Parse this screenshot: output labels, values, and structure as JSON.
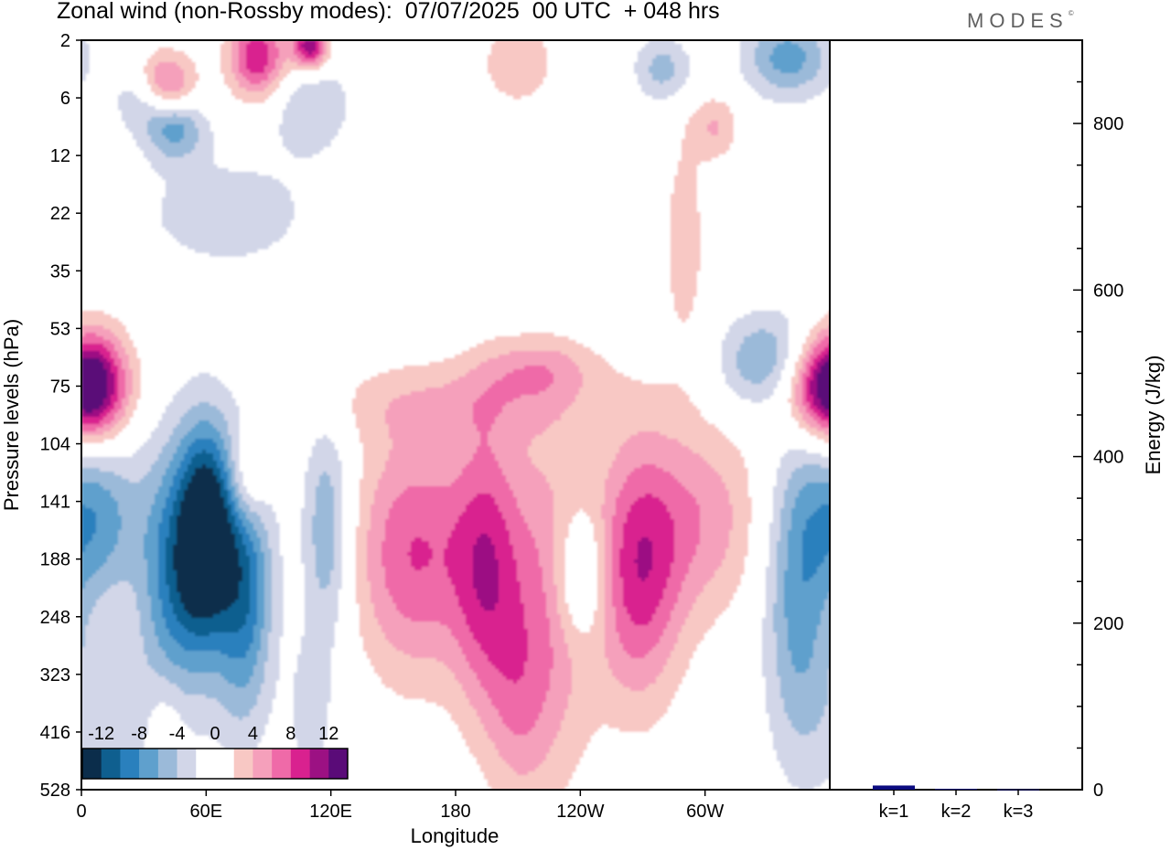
{
  "title": "Zonal wind (non-Rossby modes):  07/07/2025  00 UTC  + 048 hrs",
  "brand": "MODES",
  "chart_data": [
    {
      "type": "heatmap",
      "title": "Zonal wind (non-Rossby modes):  07/07/2025  00 UTC  + 048 hrs",
      "xlabel": "Longitude",
      "ylabel": "Pressure levels (hPa)",
      "x_ticks": [
        "0",
        "60E",
        "120E",
        "180",
        "120W",
        "60W"
      ],
      "y_ticks": [
        "2",
        "6",
        "12",
        "22",
        "35",
        "53",
        "75",
        "104",
        "141",
        "188",
        "248",
        "323",
        "416",
        "528"
      ],
      "colorbar": {
        "tick_labels": [
          "-12",
          "-8",
          "-4",
          "0",
          "4",
          "8",
          "12"
        ],
        "colors": [
          "#0b2d4b",
          "#0f5f8f",
          "#2a80bd",
          "#5fa0cd",
          "#9bbad9",
          "#d2d6e8",
          "#ffffff",
          "#ffffff",
          "#f8c8c4",
          "#f5a0bb",
          "#ef6aa8",
          "#d9218f",
          "#9c1183",
          "#5a0b78"
        ]
      },
      "blobs": [
        {
          "lon": 5,
          "lev": 6.0,
          "wlon": 12,
          "wlev": 0.7,
          "v": 10
        },
        {
          "lon": 60,
          "lev": 8.5,
          "wlon": 9,
          "wlev": 1.3,
          "v": -13
        },
        {
          "lon": 45,
          "lev": 9.2,
          "wlon": 12,
          "wlev": 1.6,
          "v": -9
        },
        {
          "lon": 78,
          "lev": 9.4,
          "wlon": 10,
          "wlev": 1.7,
          "v": -10
        },
        {
          "lon": 118,
          "lev": 8.5,
          "wlon": 8,
          "wlev": 1.4,
          "v": -6
        },
        {
          "lon": 8,
          "lev": 8.3,
          "wlon": 14,
          "wlev": 1.0,
          "v": -7
        },
        {
          "lon": 80,
          "lev": 7.6,
          "wlon": 7,
          "wlev": 0.6,
          "v": 6
        },
        {
          "lon": 160,
          "lev": 8.9,
          "wlon": 20,
          "wlev": 1.5,
          "v": 8
        },
        {
          "lon": 195,
          "lev": 9.2,
          "wlon": 12,
          "wlev": 1.8,
          "v": 8
        },
        {
          "lon": 225,
          "lev": 9.8,
          "wlon": 15,
          "wlev": 2.2,
          "v": 6
        },
        {
          "lon": 268,
          "lev": 9.2,
          "wlon": 15,
          "wlev": 1.6,
          "v": 9
        },
        {
          "lon": 300,
          "lev": 8.3,
          "wlon": 20,
          "wlev": 1.2,
          "v": 5
        },
        {
          "lon": 240,
          "lev": 9.3,
          "wlon": 9,
          "wlev": 0.8,
          "v": -6
        },
        {
          "lon": 345,
          "lev": 9.6,
          "wlon": 12,
          "wlev": 2.0,
          "v": -7
        },
        {
          "lon": 355,
          "lev": 6.0,
          "wlon": 16,
          "wlev": 0.6,
          "v": 9
        },
        {
          "lon": 330,
          "lev": 5.6,
          "wlon": 16,
          "wlev": 0.6,
          "v": -7
        },
        {
          "lon": 180,
          "lev": 6.3,
          "wlon": 50,
          "wlev": 0.5,
          "v": 3
        },
        {
          "lon": 220,
          "lev": 5.7,
          "wlon": 20,
          "wlev": 0.4,
          "v": 4
        },
        {
          "lon": 290,
          "lev": 3.5,
          "wlon": 8,
          "wlev": 1.5,
          "v": 3
        },
        {
          "lon": 40,
          "lev": 0.8,
          "wlon": 10,
          "wlev": 0.4,
          "v": 9
        },
        {
          "lon": 85,
          "lev": 0.3,
          "wlon": 10,
          "wlev": 0.5,
          "v": 10
        },
        {
          "lon": 110,
          "lev": 0.1,
          "wlon": 6,
          "wlev": 0.3,
          "v": 12
        },
        {
          "lon": 45,
          "lev": 1.5,
          "wlon": 10,
          "wlev": 0.4,
          "v": -7
        },
        {
          "lon": 30,
          "lev": 1.0,
          "wlon": 10,
          "wlev": 0.4,
          "v": -5
        },
        {
          "lon": 110,
          "lev": 1.1,
          "wlon": 14,
          "wlev": 0.6,
          "v": -4
        },
        {
          "lon": 340,
          "lev": 0.3,
          "wlon": 15,
          "wlev": 0.5,
          "v": -7
        },
        {
          "lon": 280,
          "lev": 0.5,
          "wlon": 10,
          "wlev": 0.4,
          "v": -5
        },
        {
          "lon": 70,
          "lev": 3.0,
          "wlon": 35,
          "wlev": 0.8,
          "v": -3
        },
        {
          "lon": 210,
          "lev": 0.4,
          "wlon": 12,
          "wlev": 0.5,
          "v": 4
        },
        {
          "lon": 305,
          "lev": 1.5,
          "wlon": 8,
          "wlev": 0.4,
          "v": 4
        },
        {
          "lon": 20,
          "lev": 11.8,
          "wlon": 20,
          "wlev": 1.0,
          "v": -3
        },
        {
          "lon": 40,
          "lev": 11.8,
          "wlon": 8,
          "wlev": 0.7,
          "v": 3
        },
        {
          "lon": 210,
          "lev": 11.6,
          "wlon": 10,
          "wlev": 1.2,
          "v": 3
        },
        {
          "lon": 110,
          "lev": 11.7,
          "wlon": 8,
          "wlev": 1.0,
          "v": -3
        }
      ]
    },
    {
      "type": "bar",
      "categories": [
        "k=1",
        "k=2",
        "k=3"
      ],
      "values": [
        5,
        1,
        0.5
      ],
      "ylabel": "Energy (J/kg)",
      "ylim": [
        0,
        900
      ],
      "y_ticks": [
        0,
        200,
        400,
        600,
        800
      ],
      "bar_color": "#0b0b80"
    }
  ]
}
